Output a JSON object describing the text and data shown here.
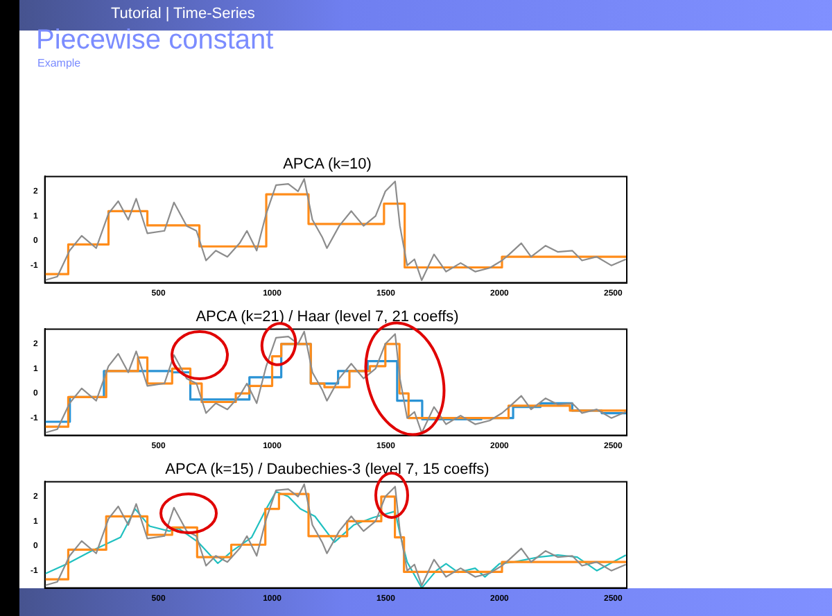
{
  "chart_data": [
    {
      "type": "line",
      "title": "APCA (k=10)",
      "annotations": [
        "Tutorial | Time-Series",
        "Piecewise constant",
        "Example"
      ],
      "xlim": [
        0,
        2560
      ],
      "ylim": [
        -1.7,
        2.6
      ],
      "xticks": [
        500,
        1000,
        1500,
        2000,
        2500
      ],
      "yticks": [
        -1,
        0,
        1,
        2
      ],
      "grid": false,
      "legend": false,
      "series": [
        {
          "type": "line",
          "color": "#8c8c8c",
          "x": [
            0,
            55,
            109,
            162,
            226,
            280,
            323,
            367,
            402,
            451,
            526,
            568,
            624,
            667,
            709,
            752,
            803,
            857,
            889,
            932,
            974,
            1017,
            1071,
            1114,
            1141,
            1177,
            1220,
            1241,
            1295,
            1348,
            1402,
            1455,
            1498,
            1541,
            1562,
            1594,
            1626,
            1658,
            1712,
            1765,
            1829,
            1893,
            1957,
            2011,
            2043,
            2096,
            2139,
            2203,
            2256,
            2320,
            2363,
            2428,
            2492,
            2556
          ],
          "values": [
            -1.6,
            -1.45,
            -0.4,
            0.2,
            -0.3,
            1.1,
            1.6,
            0.85,
            1.7,
            0.3,
            0.4,
            1.55,
            0.6,
            0.4,
            -0.8,
            -0.4,
            -0.65,
            -0.1,
            0.4,
            -0.4,
            1.1,
            2.25,
            2.3,
            2.0,
            2.5,
            0.85,
            0.15,
            -0.3,
            0.6,
            1.2,
            0.6,
            1.0,
            2.0,
            2.4,
            0.6,
            -1.0,
            -0.75,
            -1.6,
            -0.55,
            -1.25,
            -0.9,
            -1.25,
            -1.1,
            -0.8,
            -0.55,
            -0.1,
            -0.65,
            -0.2,
            -0.45,
            -0.4,
            -0.8,
            -0.65,
            -1.0,
            -0.75
          ]
        },
        {
          "type": "step",
          "color": "#ff8c1a",
          "x": [
            0,
            103,
            280,
            451,
            680,
            974,
            1160,
            1492,
            1583,
            2011,
            2560
          ],
          "values": [
            -1.35,
            -0.15,
            1.2,
            0.62,
            -0.23,
            1.88,
            0.68,
            1.5,
            -1.08,
            -0.65,
            -0.65
          ]
        }
      ]
    },
    {
      "type": "line",
      "title": "APCA (k=21) / Haar (level 7, 21 coeffs)",
      "xlim": [
        0,
        2560
      ],
      "ylim": [
        -1.7,
        2.6
      ],
      "xticks": [
        500,
        1000,
        1500,
        2000,
        2500
      ],
      "yticks": [
        -1,
        0,
        1,
        2
      ],
      "grid": false,
      "legend": false,
      "series": [
        {
          "type": "line",
          "color": "#8c8c8c",
          "x": [
            0,
            55,
            109,
            162,
            226,
            280,
            323,
            367,
            402,
            451,
            526,
            568,
            624,
            667,
            709,
            752,
            803,
            857,
            889,
            932,
            974,
            1017,
            1071,
            1114,
            1141,
            1177,
            1220,
            1241,
            1295,
            1348,
            1402,
            1455,
            1498,
            1541,
            1562,
            1594,
            1626,
            1658,
            1712,
            1765,
            1829,
            1893,
            1957,
            2011,
            2043,
            2096,
            2139,
            2203,
            2256,
            2320,
            2363,
            2428,
            2492,
            2556
          ],
          "values": [
            -1.6,
            -1.45,
            -0.4,
            0.2,
            -0.3,
            1.1,
            1.6,
            0.85,
            1.7,
            0.3,
            0.4,
            1.55,
            0.6,
            0.4,
            -0.8,
            -0.4,
            -0.65,
            -0.1,
            0.4,
            -0.4,
            1.1,
            2.25,
            2.3,
            2.0,
            2.5,
            0.85,
            0.15,
            -0.3,
            0.6,
            1.2,
            0.6,
            1.0,
            2.0,
            2.4,
            0.6,
            -1.0,
            -0.75,
            -1.6,
            -0.55,
            -1.25,
            -0.9,
            -1.25,
            -1.1,
            -0.8,
            -0.55,
            -0.1,
            -0.65,
            -0.2,
            -0.45,
            -0.4,
            -0.8,
            -0.65,
            -1.0,
            -0.75
          ]
        },
        {
          "type": "step",
          "color": "#ff8c1a",
          "x": [
            0,
            103,
            270,
            410,
            451,
            560,
            640,
            690,
            840,
            900,
            1000,
            1040,
            1170,
            1230,
            1340,
            1430,
            1498,
            1560,
            1600,
            2040,
            2310,
            2560
          ],
          "values": [
            -1.35,
            -0.15,
            0.9,
            1.45,
            0.4,
            1.0,
            0.4,
            -0.35,
            0.0,
            0.3,
            1.5,
            2.0,
            0.4,
            0.25,
            0.9,
            1.1,
            2.0,
            0.0,
            -1.0,
            -0.5,
            -0.7,
            -0.7
          ]
        },
        {
          "type": "step",
          "color": "#2a93d5",
          "x": [
            0,
            110,
            260,
            560,
            640,
            900,
            1040,
            1170,
            1290,
            1420,
            1550,
            1660,
            1920,
            2060,
            2180,
            2320,
            2450,
            2560
          ],
          "values": [
            -1.15,
            -0.15,
            0.9,
            0.85,
            -0.25,
            0.65,
            2.0,
            0.4,
            0.9,
            1.3,
            -0.3,
            -1.05,
            -1.0,
            -0.55,
            -0.4,
            -0.7,
            -0.8,
            -0.8
          ]
        }
      ]
    },
    {
      "type": "line",
      "title": "APCA (k=15) / Daubechies-3 (level 7, 15 coeffs)",
      "xlim": [
        0,
        2560
      ],
      "ylim": [
        -1.7,
        2.6
      ],
      "xticks": [
        500,
        1000,
        1500,
        2000,
        2500
      ],
      "yticks": [
        -1,
        0,
        1,
        2
      ],
      "grid": false,
      "legend": false,
      "series": [
        {
          "type": "line",
          "color": "#8c8c8c",
          "x": [
            0,
            55,
            109,
            162,
            226,
            280,
            323,
            367,
            402,
            451,
            526,
            568,
            624,
            667,
            709,
            752,
            803,
            857,
            889,
            932,
            974,
            1017,
            1071,
            1114,
            1141,
            1177,
            1220,
            1241,
            1295,
            1348,
            1402,
            1455,
            1498,
            1541,
            1562,
            1594,
            1626,
            1658,
            1712,
            1765,
            1829,
            1893,
            1957,
            2011,
            2043,
            2096,
            2139,
            2203,
            2256,
            2320,
            2363,
            2428,
            2492,
            2556
          ],
          "values": [
            -1.6,
            -1.45,
            -0.4,
            0.2,
            -0.3,
            1.1,
            1.6,
            0.85,
            1.7,
            0.3,
            0.4,
            1.55,
            0.6,
            0.4,
            -0.8,
            -0.4,
            -0.65,
            -0.1,
            0.4,
            -0.4,
            1.1,
            2.25,
            2.3,
            2.0,
            2.5,
            0.85,
            0.15,
            -0.3,
            0.6,
            1.2,
            0.6,
            1.0,
            2.0,
            2.4,
            0.6,
            -1.0,
            -0.75,
            -1.6,
            -0.55,
            -1.25,
            -0.9,
            -1.25,
            -1.1,
            -0.8,
            -0.55,
            -0.1,
            -0.65,
            -0.2,
            -0.45,
            -0.4,
            -0.8,
            -0.65,
            -1.0,
            -0.75
          ]
        },
        {
          "type": "step",
          "color": "#ff8c1a",
          "x": [
            0,
            103,
            270,
            451,
            560,
            670,
            820,
            970,
            1030,
            1160,
            1330,
            1480,
            1540,
            1580,
            2011,
            2560
          ],
          "values": [
            -1.35,
            -0.15,
            1.2,
            0.45,
            0.75,
            -0.45,
            0.05,
            1.5,
            2.1,
            0.4,
            1.0,
            2.0,
            0.35,
            -1.05,
            -0.65,
            -0.65
          ]
        },
        {
          "type": "line",
          "color": "#20c0c0",
          "x": [
            0,
            98,
            205,
            333,
            397,
            461,
            547,
            590,
            675,
            761,
            825,
            910,
            974,
            1017,
            1071,
            1124,
            1188,
            1274,
            1359,
            1445,
            1541,
            1562,
            1594,
            1658,
            1722,
            1765,
            1818,
            1893,
            1936,
            2000,
            2064,
            2171,
            2257,
            2342,
            2428,
            2556
          ],
          "values": [
            -1.13,
            -0.72,
            -0.2,
            0.35,
            1.5,
            0.8,
            0.6,
            0.7,
            0.15,
            -0.7,
            -0.2,
            0.35,
            1.5,
            2.2,
            2.0,
            1.5,
            1.2,
            0.15,
            0.85,
            1.15,
            1.4,
            0.5,
            -0.65,
            -1.7,
            -1.0,
            -0.72,
            -1.07,
            -0.9,
            -1.25,
            -0.72,
            -0.65,
            -0.45,
            -0.37,
            -0.45,
            -1.0,
            -0.37
          ]
        }
      ]
    }
  ]
}
